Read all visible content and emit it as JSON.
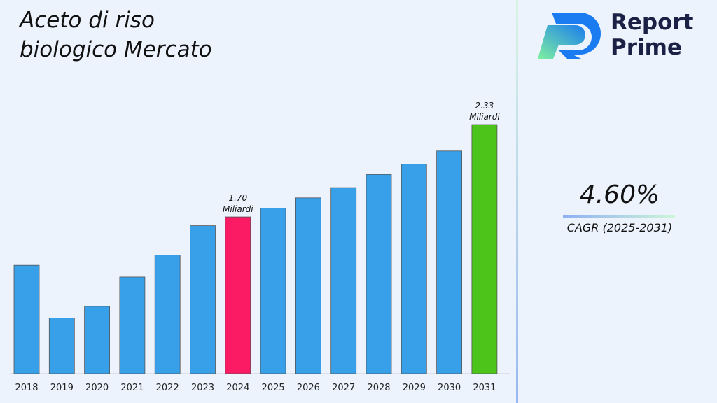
{
  "title": "Aceto di riso biologico Mercato",
  "logo": {
    "text_line1": "Report",
    "text_line2": "Prime"
  },
  "cagr": {
    "value": "4.60%",
    "label": "CAGR (2025-2031)"
  },
  "colors": {
    "bar": "#37a0e8",
    "highlight_2024": "#fb1a64",
    "highlight_2031": "#4cc41a"
  },
  "chart_data": {
    "type": "bar",
    "categories": [
      "2018",
      "2019",
      "2020",
      "2021",
      "2022",
      "2023",
      "2024",
      "2025",
      "2026",
      "2027",
      "2028",
      "2029",
      "2030",
      "2031"
    ],
    "values": [
      1.37,
      1.01,
      1.09,
      1.29,
      1.44,
      1.64,
      1.7,
      1.76,
      1.83,
      1.9,
      1.99,
      2.06,
      2.15,
      2.33
    ],
    "annotations": [
      {
        "category": "2024",
        "line1": "1.70",
        "line2": "Miliardi"
      },
      {
        "category": "2031",
        "line1": "2.33",
        "line2": "Miliardi"
      }
    ],
    "unit": "Miliardi",
    "grid": false
  }
}
